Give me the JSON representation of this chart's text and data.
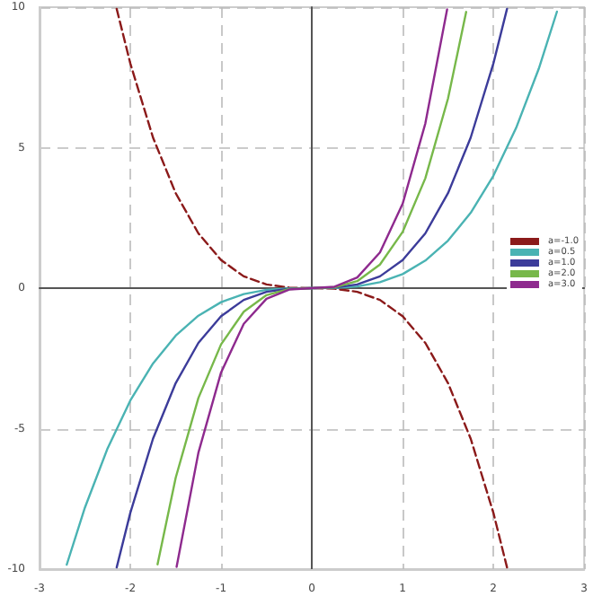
{
  "chart_data": {
    "type": "line",
    "xlim": [
      -3,
      3
    ],
    "ylim": [
      -10,
      10
    ],
    "xticks": [
      -3,
      -2,
      -1,
      0,
      1,
      2,
      3
    ],
    "yticks": [
      -10,
      -5,
      0,
      5,
      10
    ],
    "grid": true,
    "legend": "right",
    "marker": "none",
    "series": [
      {
        "name": "a=-1.0",
        "color": "#8b1a1a",
        "line_style": "dashed",
        "x": [
          -2.15,
          -2,
          -1.75,
          -1.5,
          -1.25,
          -1,
          -0.75,
          -0.5,
          -0.25,
          0,
          0.25,
          0.5,
          0.75,
          1,
          1.25,
          1.5,
          1.75,
          2,
          2.15
        ],
        "values": [
          9.94,
          8,
          5.36,
          3.38,
          1.95,
          1,
          0.42,
          0.13,
          0.02,
          0,
          -0.02,
          -0.13,
          -0.42,
          -1,
          -1.95,
          -3.38,
          -5.36,
          -8,
          -9.94
        ]
      },
      {
        "name": "a=0.5",
        "color": "#4ab3b3",
        "x": [
          -2.7,
          -2.5,
          -2.25,
          -2,
          -1.75,
          -1.5,
          -1.25,
          -1,
          -0.75,
          -0.5,
          -0.25,
          0,
          0.25,
          0.5,
          0.75,
          1,
          1.25,
          1.5,
          1.75,
          2,
          2.25,
          2.5,
          2.7
        ],
        "values": [
          -9.84,
          -7.81,
          -5.7,
          -4,
          -2.68,
          -1.69,
          -0.98,
          -0.5,
          -0.21,
          -0.06,
          -0.01,
          0,
          0.01,
          0.06,
          0.21,
          0.5,
          0.98,
          1.69,
          2.68,
          4,
          5.7,
          7.81,
          9.84
        ]
      },
      {
        "name": "a=1.0",
        "color": "#3c3c9a",
        "x": [
          -2.15,
          -2,
          -1.75,
          -1.5,
          -1.25,
          -1,
          -0.75,
          -0.5,
          -0.25,
          0,
          0.25,
          0.5,
          0.75,
          1,
          1.25,
          1.5,
          1.75,
          2,
          2.15
        ],
        "values": [
          -9.94,
          -8,
          -5.36,
          -3.38,
          -1.95,
          -1,
          -0.42,
          -0.13,
          -0.02,
          0,
          0.02,
          0.13,
          0.42,
          1,
          1.95,
          3.38,
          5.36,
          8,
          9.94
        ]
      },
      {
        "name": "a=2.0",
        "color": "#77b84a",
        "x": [
          -1.7,
          -1.5,
          -1.25,
          -1,
          -0.75,
          -0.5,
          -0.25,
          0,
          0.25,
          0.5,
          0.75,
          1,
          1.25,
          1.5,
          1.7
        ],
        "values": [
          -9.83,
          -6.75,
          -3.91,
          -2,
          -0.84,
          -0.25,
          -0.03,
          0,
          0.03,
          0.25,
          0.84,
          2,
          3.91,
          6.75,
          9.83
        ]
      },
      {
        "name": "a=3.0",
        "color": "#8e2a8e",
        "x": [
          -1.49,
          -1.25,
          -1,
          -0.75,
          -0.5,
          -0.25,
          0,
          0.25,
          0.5,
          0.75,
          1,
          1.25,
          1.49
        ],
        "values": [
          -9.92,
          -5.86,
          -3,
          -1.27,
          -0.38,
          -0.05,
          0,
          0.05,
          0.38,
          1.27,
          3,
          5.86,
          9.92
        ]
      }
    ]
  }
}
